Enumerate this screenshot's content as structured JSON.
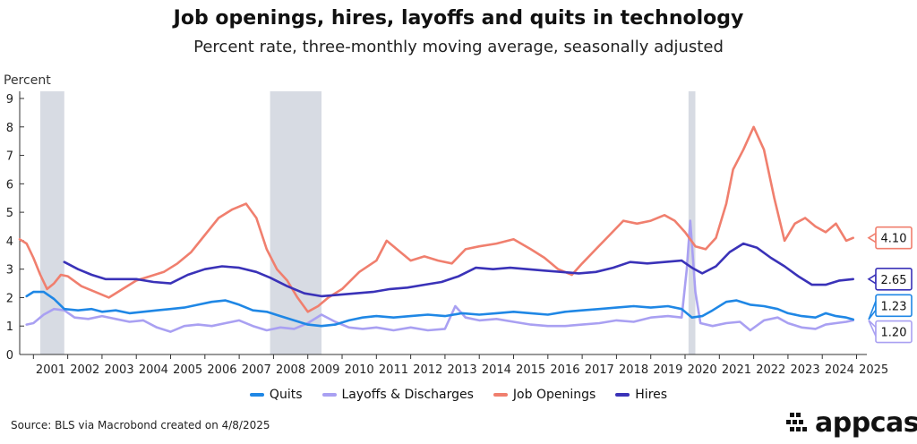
{
  "header": {
    "title": "Job openings, hires, layoffs and quits in technology",
    "subtitle": "Percent rate, three-monthly moving average, seasonally adjusted"
  },
  "footer": {
    "source": "Source: BLS via Macrobond created on 4/8/2025",
    "brand": "appcast"
  },
  "colors": {
    "quits": "#1f87e5",
    "layoffs": "#a9a0f2",
    "openings": "#f07f6e",
    "hires": "#3a32b8",
    "recession": "#d7dbe3"
  },
  "chart_data": {
    "type": "line",
    "ylabel": "Percent",
    "ylim": [
      0,
      9
    ],
    "yticks": [
      "0",
      "1",
      "2",
      "3",
      "4",
      "5",
      "6",
      "7",
      "8",
      "9"
    ],
    "xlim": [
      2000.6,
      2025.3
    ],
    "xticks": [
      "2001",
      "2002",
      "2003",
      "2004",
      "2005",
      "2006",
      "2007",
      "2008",
      "2009",
      "2010",
      "2011",
      "2012",
      "2013",
      "2014",
      "2015",
      "2016",
      "2017",
      "2018",
      "2019",
      "2020",
      "2021",
      "2022",
      "2023",
      "2024",
      "2025"
    ],
    "recessions": [
      [
        2001.2,
        2001.9
      ],
      [
        2007.9,
        2009.4
      ],
      [
        2020.1,
        2020.3
      ]
    ],
    "legend_position": "bottom",
    "series": [
      {
        "name": "Quits",
        "key": "quits",
        "end_label": "1.23",
        "points": [
          [
            2000.8,
            2.05
          ],
          [
            2001.0,
            2.2
          ],
          [
            2001.3,
            2.2
          ],
          [
            2001.6,
            1.95
          ],
          [
            2001.9,
            1.6
          ],
          [
            2002.3,
            1.55
          ],
          [
            2002.7,
            1.6
          ],
          [
            2003.0,
            1.5
          ],
          [
            2003.4,
            1.55
          ],
          [
            2003.8,
            1.45
          ],
          [
            2004.2,
            1.5
          ],
          [
            2004.6,
            1.55
          ],
          [
            2005.0,
            1.6
          ],
          [
            2005.4,
            1.65
          ],
          [
            2005.8,
            1.75
          ],
          [
            2006.2,
            1.85
          ],
          [
            2006.6,
            1.9
          ],
          [
            2007.0,
            1.75
          ],
          [
            2007.4,
            1.55
          ],
          [
            2007.8,
            1.5
          ],
          [
            2008.2,
            1.35
          ],
          [
            2008.6,
            1.2
          ],
          [
            2009.0,
            1.05
          ],
          [
            2009.4,
            1.0
          ],
          [
            2009.8,
            1.05
          ],
          [
            2010.2,
            1.2
          ],
          [
            2010.6,
            1.3
          ],
          [
            2011.0,
            1.35
          ],
          [
            2011.5,
            1.3
          ],
          [
            2012.0,
            1.35
          ],
          [
            2012.5,
            1.4
          ],
          [
            2013.0,
            1.35
          ],
          [
            2013.5,
            1.45
          ],
          [
            2014.0,
            1.4
          ],
          [
            2014.5,
            1.45
          ],
          [
            2015.0,
            1.5
          ],
          [
            2015.5,
            1.45
          ],
          [
            2016.0,
            1.4
          ],
          [
            2016.5,
            1.5
          ],
          [
            2017.0,
            1.55
          ],
          [
            2017.5,
            1.6
          ],
          [
            2018.0,
            1.65
          ],
          [
            2018.5,
            1.7
          ],
          [
            2019.0,
            1.65
          ],
          [
            2019.5,
            1.7
          ],
          [
            2019.9,
            1.6
          ],
          [
            2020.2,
            1.3
          ],
          [
            2020.5,
            1.35
          ],
          [
            2020.8,
            1.55
          ],
          [
            2021.2,
            1.85
          ],
          [
            2021.5,
            1.9
          ],
          [
            2021.9,
            1.75
          ],
          [
            2022.3,
            1.7
          ],
          [
            2022.7,
            1.6
          ],
          [
            2023.0,
            1.45
          ],
          [
            2023.4,
            1.35
          ],
          [
            2023.8,
            1.3
          ],
          [
            2024.1,
            1.45
          ],
          [
            2024.4,
            1.35
          ],
          [
            2024.7,
            1.3
          ],
          [
            2024.9,
            1.23
          ]
        ]
      },
      {
        "name": "Layoffs & Discharges",
        "key": "layoffs",
        "end_label": "1.20",
        "points": [
          [
            2000.8,
            1.05
          ],
          [
            2001.0,
            1.1
          ],
          [
            2001.3,
            1.4
          ],
          [
            2001.6,
            1.6
          ],
          [
            2001.9,
            1.55
          ],
          [
            2002.2,
            1.3
          ],
          [
            2002.6,
            1.25
          ],
          [
            2003.0,
            1.35
          ],
          [
            2003.4,
            1.25
          ],
          [
            2003.8,
            1.15
          ],
          [
            2004.2,
            1.2
          ],
          [
            2004.6,
            0.95
          ],
          [
            2005.0,
            0.8
          ],
          [
            2005.4,
            1.0
          ],
          [
            2005.8,
            1.05
          ],
          [
            2006.2,
            1.0
          ],
          [
            2006.6,
            1.1
          ],
          [
            2007.0,
            1.2
          ],
          [
            2007.4,
            1.0
          ],
          [
            2007.8,
            0.85
          ],
          [
            2008.2,
            0.95
          ],
          [
            2008.6,
            0.9
          ],
          [
            2009.0,
            1.1
          ],
          [
            2009.4,
            1.4
          ],
          [
            2009.8,
            1.15
          ],
          [
            2010.2,
            0.95
          ],
          [
            2010.6,
            0.9
          ],
          [
            2011.0,
            0.95
          ],
          [
            2011.5,
            0.85
          ],
          [
            2012.0,
            0.95
          ],
          [
            2012.5,
            0.85
          ],
          [
            2013.0,
            0.9
          ],
          [
            2013.3,
            1.7
          ],
          [
            2013.6,
            1.3
          ],
          [
            2014.0,
            1.2
          ],
          [
            2014.5,
            1.25
          ],
          [
            2015.0,
            1.15
          ],
          [
            2015.5,
            1.05
          ],
          [
            2016.0,
            1.0
          ],
          [
            2016.5,
            1.0
          ],
          [
            2017.0,
            1.05
          ],
          [
            2017.5,
            1.1
          ],
          [
            2018.0,
            1.2
          ],
          [
            2018.5,
            1.15
          ],
          [
            2019.0,
            1.3
          ],
          [
            2019.5,
            1.35
          ],
          [
            2019.9,
            1.3
          ],
          [
            2020.05,
            3.0
          ],
          [
            2020.15,
            4.7
          ],
          [
            2020.3,
            2.2
          ],
          [
            2020.45,
            1.1
          ],
          [
            2020.8,
            1.0
          ],
          [
            2021.2,
            1.1
          ],
          [
            2021.6,
            1.15
          ],
          [
            2021.9,
            0.85
          ],
          [
            2022.3,
            1.2
          ],
          [
            2022.7,
            1.3
          ],
          [
            2023.0,
            1.1
          ],
          [
            2023.4,
            0.95
          ],
          [
            2023.8,
            0.9
          ],
          [
            2024.1,
            1.05
          ],
          [
            2024.4,
            1.1
          ],
          [
            2024.7,
            1.15
          ],
          [
            2024.9,
            1.2
          ]
        ]
      },
      {
        "name": "Job Openings",
        "key": "openings",
        "end_label": "4.10",
        "points": [
          [
            2000.6,
            4.05
          ],
          [
            2000.8,
            3.9
          ],
          [
            2001.0,
            3.4
          ],
          [
            2001.2,
            2.8
          ],
          [
            2001.4,
            2.3
          ],
          [
            2001.6,
            2.5
          ],
          [
            2001.8,
            2.8
          ],
          [
            2002.0,
            2.75
          ],
          [
            2002.4,
            2.4
          ],
          [
            2002.8,
            2.2
          ],
          [
            2003.2,
            2.0
          ],
          [
            2003.6,
            2.3
          ],
          [
            2004.0,
            2.6
          ],
          [
            2004.4,
            2.75
          ],
          [
            2004.8,
            2.9
          ],
          [
            2005.2,
            3.2
          ],
          [
            2005.6,
            3.6
          ],
          [
            2006.0,
            4.2
          ],
          [
            2006.4,
            4.8
          ],
          [
            2006.8,
            5.1
          ],
          [
            2007.2,
            5.3
          ],
          [
            2007.5,
            4.8
          ],
          [
            2007.8,
            3.7
          ],
          [
            2008.1,
            3.0
          ],
          [
            2008.4,
            2.6
          ],
          [
            2008.7,
            2.0
          ],
          [
            2009.0,
            1.5
          ],
          [
            2009.3,
            1.7
          ],
          [
            2009.6,
            2.0
          ],
          [
            2010.0,
            2.3
          ],
          [
            2010.5,
            2.9
          ],
          [
            2011.0,
            3.3
          ],
          [
            2011.3,
            4.0
          ],
          [
            2011.7,
            3.6
          ],
          [
            2012.0,
            3.3
          ],
          [
            2012.4,
            3.45
          ],
          [
            2012.8,
            3.3
          ],
          [
            2013.2,
            3.2
          ],
          [
            2013.6,
            3.7
          ],
          [
            2014.0,
            3.8
          ],
          [
            2014.5,
            3.9
          ],
          [
            2015.0,
            4.05
          ],
          [
            2015.5,
            3.7
          ],
          [
            2015.9,
            3.4
          ],
          [
            2016.3,
            3.0
          ],
          [
            2016.7,
            2.8
          ],
          [
            2017.0,
            3.2
          ],
          [
            2017.4,
            3.7
          ],
          [
            2017.8,
            4.2
          ],
          [
            2018.2,
            4.7
          ],
          [
            2018.6,
            4.6
          ],
          [
            2019.0,
            4.7
          ],
          [
            2019.4,
            4.9
          ],
          [
            2019.7,
            4.7
          ],
          [
            2020.0,
            4.3
          ],
          [
            2020.3,
            3.8
          ],
          [
            2020.6,
            3.7
          ],
          [
            2020.9,
            4.1
          ],
          [
            2021.2,
            5.3
          ],
          [
            2021.4,
            6.5
          ],
          [
            2021.7,
            7.2
          ],
          [
            2022.0,
            8.0
          ],
          [
            2022.3,
            7.2
          ],
          [
            2022.6,
            5.5
          ],
          [
            2022.9,
            4.0
          ],
          [
            2023.2,
            4.6
          ],
          [
            2023.5,
            4.8
          ],
          [
            2023.8,
            4.5
          ],
          [
            2024.1,
            4.3
          ],
          [
            2024.4,
            4.6
          ],
          [
            2024.7,
            4.0
          ],
          [
            2024.9,
            4.1
          ]
        ]
      },
      {
        "name": "Hires",
        "key": "hires",
        "end_label": "2.65",
        "points": [
          [
            2001.9,
            3.25
          ],
          [
            2002.3,
            3.0
          ],
          [
            2002.7,
            2.8
          ],
          [
            2003.1,
            2.65
          ],
          [
            2003.6,
            2.65
          ],
          [
            2004.0,
            2.65
          ],
          [
            2004.5,
            2.55
          ],
          [
            2005.0,
            2.5
          ],
          [
            2005.5,
            2.8
          ],
          [
            2006.0,
            3.0
          ],
          [
            2006.5,
            3.1
          ],
          [
            2007.0,
            3.05
          ],
          [
            2007.5,
            2.9
          ],
          [
            2007.9,
            2.7
          ],
          [
            2008.4,
            2.4
          ],
          [
            2008.9,
            2.15
          ],
          [
            2009.4,
            2.05
          ],
          [
            2009.9,
            2.1
          ],
          [
            2010.4,
            2.15
          ],
          [
            2010.9,
            2.2
          ],
          [
            2011.4,
            2.3
          ],
          [
            2011.9,
            2.35
          ],
          [
            2012.4,
            2.45
          ],
          [
            2012.9,
            2.55
          ],
          [
            2013.4,
            2.75
          ],
          [
            2013.9,
            3.05
          ],
          [
            2014.4,
            3.0
          ],
          [
            2014.9,
            3.05
          ],
          [
            2015.4,
            3.0
          ],
          [
            2015.9,
            2.95
          ],
          [
            2016.4,
            2.9
          ],
          [
            2016.9,
            2.85
          ],
          [
            2017.4,
            2.9
          ],
          [
            2017.9,
            3.05
          ],
          [
            2018.4,
            3.25
          ],
          [
            2018.9,
            3.2
          ],
          [
            2019.4,
            3.25
          ],
          [
            2019.9,
            3.3
          ],
          [
            2020.2,
            3.05
          ],
          [
            2020.5,
            2.85
          ],
          [
            2020.9,
            3.1
          ],
          [
            2021.3,
            3.6
          ],
          [
            2021.7,
            3.9
          ],
          [
            2022.1,
            3.75
          ],
          [
            2022.5,
            3.4
          ],
          [
            2022.9,
            3.1
          ],
          [
            2023.3,
            2.75
          ],
          [
            2023.7,
            2.45
          ],
          [
            2024.1,
            2.45
          ],
          [
            2024.5,
            2.6
          ],
          [
            2024.9,
            2.65
          ]
        ]
      }
    ]
  }
}
